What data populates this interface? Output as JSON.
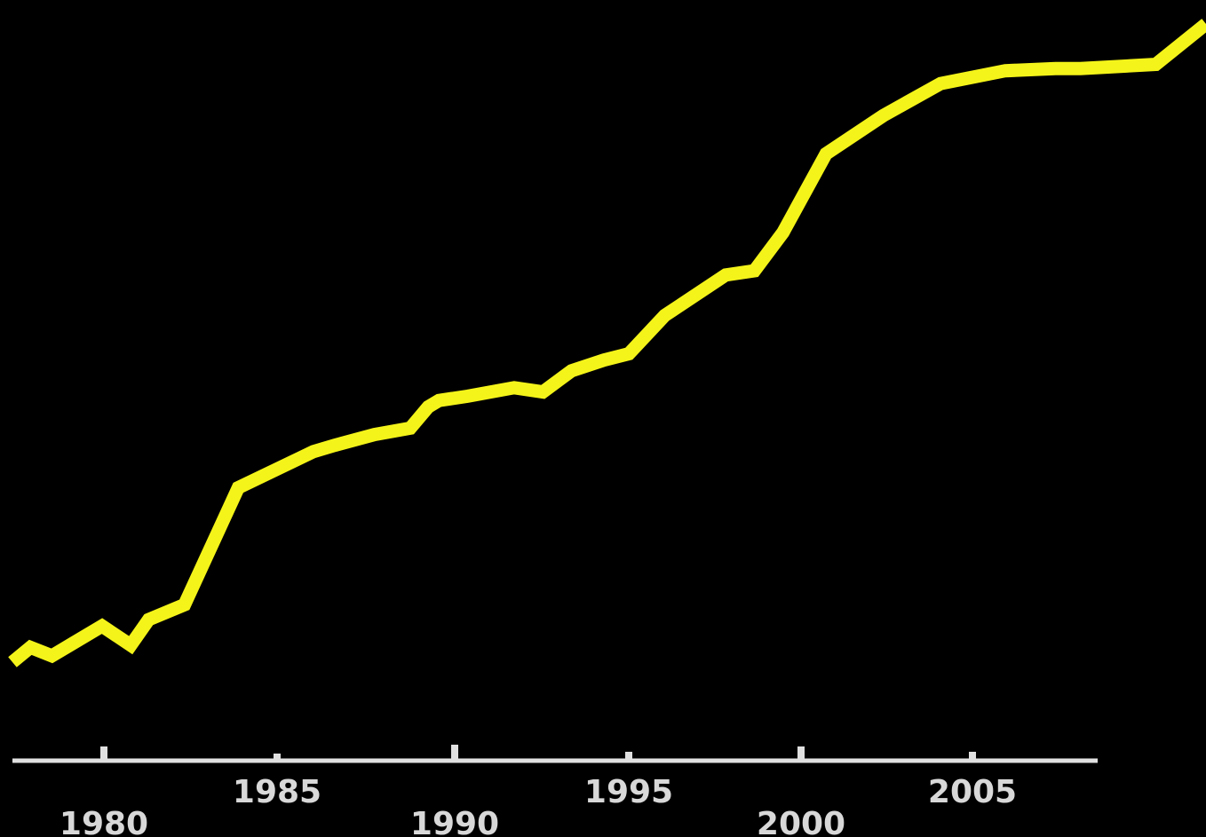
{
  "chart_data": {
    "type": "line",
    "title": "",
    "xlabel": "",
    "ylabel": "",
    "xlim": [
      1978.5,
      2011.8
    ],
    "x_ticks": [
      1980,
      1985,
      1990,
      1995,
      2000,
      2005
    ],
    "x_tick_labels": [
      "1980",
      "1985",
      "1990",
      "1995",
      "2000",
      "2005"
    ],
    "grid": false,
    "legend": "none",
    "colors": {
      "background": "#000000",
      "line": "#f4f41a",
      "axis": "#e0e0e0",
      "tick_label": "#d8d8d8"
    },
    "series": [
      {
        "values_note_free": true,
        "x": [
          1978.5,
          1979.0,
          1979.6,
          1980.2,
          1981.0,
          1981.8,
          1982.3,
          1983.3,
          1984.8,
          1986.9,
          1987.5,
          1988.6,
          1989.6,
          1990.1,
          1990.4,
          1991.2,
          1992.5,
          1993.3,
          1994.1,
          1995.0,
          1995.7,
          1996.7,
          1998.4,
          1999.2,
          2000.0,
          2001.2,
          2002.8,
          2004.4,
          2006.2,
          2007.6,
          2008.3,
          2010.4,
          2011.8
        ],
        "y": [
          1.5,
          2.2,
          1.8,
          2.4,
          3.2,
          2.3,
          3.5,
          4.2,
          9.7,
          11.4,
          11.7,
          12.2,
          12.5,
          13.5,
          13.8,
          14.0,
          14.4,
          14.2,
          15.2,
          15.7,
          16.0,
          17.8,
          19.7,
          19.9,
          21.7,
          25.4,
          27.2,
          28.7,
          29.3,
          29.4,
          29.4,
          29.6,
          31.5
        ]
      }
    ],
    "ylim": [
      0,
      32
    ]
  }
}
